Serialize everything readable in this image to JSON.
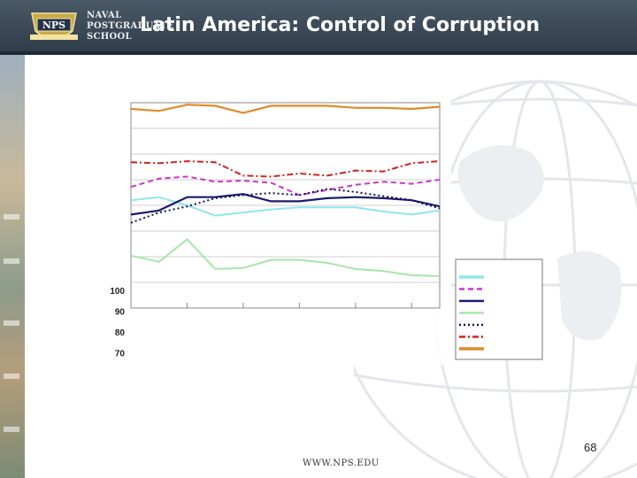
{
  "header": {
    "logo_lines": [
      "NAVAL",
      "POSTGRADUATE",
      "SCHOOL"
    ],
    "logo_emblem_text": "NPS",
    "title": "Latin America: Control of Corruption"
  },
  "footer": {
    "url": "WWW.NPS.EDU",
    "page_number": "68"
  },
  "colors": {
    "header": "#2e3b48",
    "cyan": "#8fe6ee",
    "magenta": "#cc33cc",
    "navy": "#1a1a6e",
    "green": "#a8e6a8",
    "dotted_navy": "#111155",
    "red": "#cc2222",
    "orange": "#e08a2a"
  },
  "chart_data": {
    "type": "line",
    "title": "",
    "xlabel": "",
    "ylabel": "",
    "ylim": [
      60,
      100
    ],
    "ytick_labels": [
      "100",
      "90",
      "80",
      "70"
    ],
    "x": [
      0,
      1,
      2,
      3,
      4,
      5,
      6,
      7,
      8,
      9,
      10,
      11
    ],
    "grid": true,
    "legend": "right",
    "series": [
      {
        "style": "solid",
        "color": "#8fe6ee",
        "values": [
          81.0,
          81.6,
          80.0,
          78.0,
          78.6,
          79.2,
          79.6,
          79.6,
          79.6,
          78.8,
          78.2,
          79.0
        ]
      },
      {
        "style": "dashed",
        "color": "#cc33cc",
        "values": [
          83.6,
          85.2,
          85.6,
          84.6,
          84.8,
          84.4,
          82.0,
          83.0,
          84.0,
          84.6,
          84.2,
          85.0
        ]
      },
      {
        "style": "solid",
        "color": "#1a1a6e",
        "values": [
          78.2,
          79.0,
          81.6,
          81.6,
          82.2,
          80.8,
          80.8,
          81.4,
          81.6,
          81.4,
          81.0,
          79.8
        ]
      },
      {
        "style": "solid",
        "color": "#a8e6a8",
        "values": [
          70.2,
          69.0,
          73.4,
          67.6,
          67.8,
          69.4,
          69.4,
          68.8,
          67.6,
          67.2,
          66.4,
          66.2
        ]
      },
      {
        "style": "dotted",
        "color": "#111155",
        "values": [
          76.6,
          78.6,
          79.8,
          81.4,
          82.0,
          82.4,
          82.0,
          83.2,
          82.6,
          81.8,
          81.0,
          79.4
        ]
      },
      {
        "style": "dashdot",
        "color": "#cc2222",
        "values": [
          88.4,
          88.2,
          88.6,
          88.4,
          85.8,
          85.6,
          86.2,
          85.8,
          86.8,
          86.6,
          88.2,
          88.6
        ]
      },
      {
        "style": "solid",
        "color": "#e08a2a",
        "values": [
          98.8,
          98.4,
          99.6,
          99.4,
          98.0,
          99.4,
          99.4,
          99.4,
          99.0,
          99.0,
          98.8,
          99.2
        ]
      }
    ]
  }
}
